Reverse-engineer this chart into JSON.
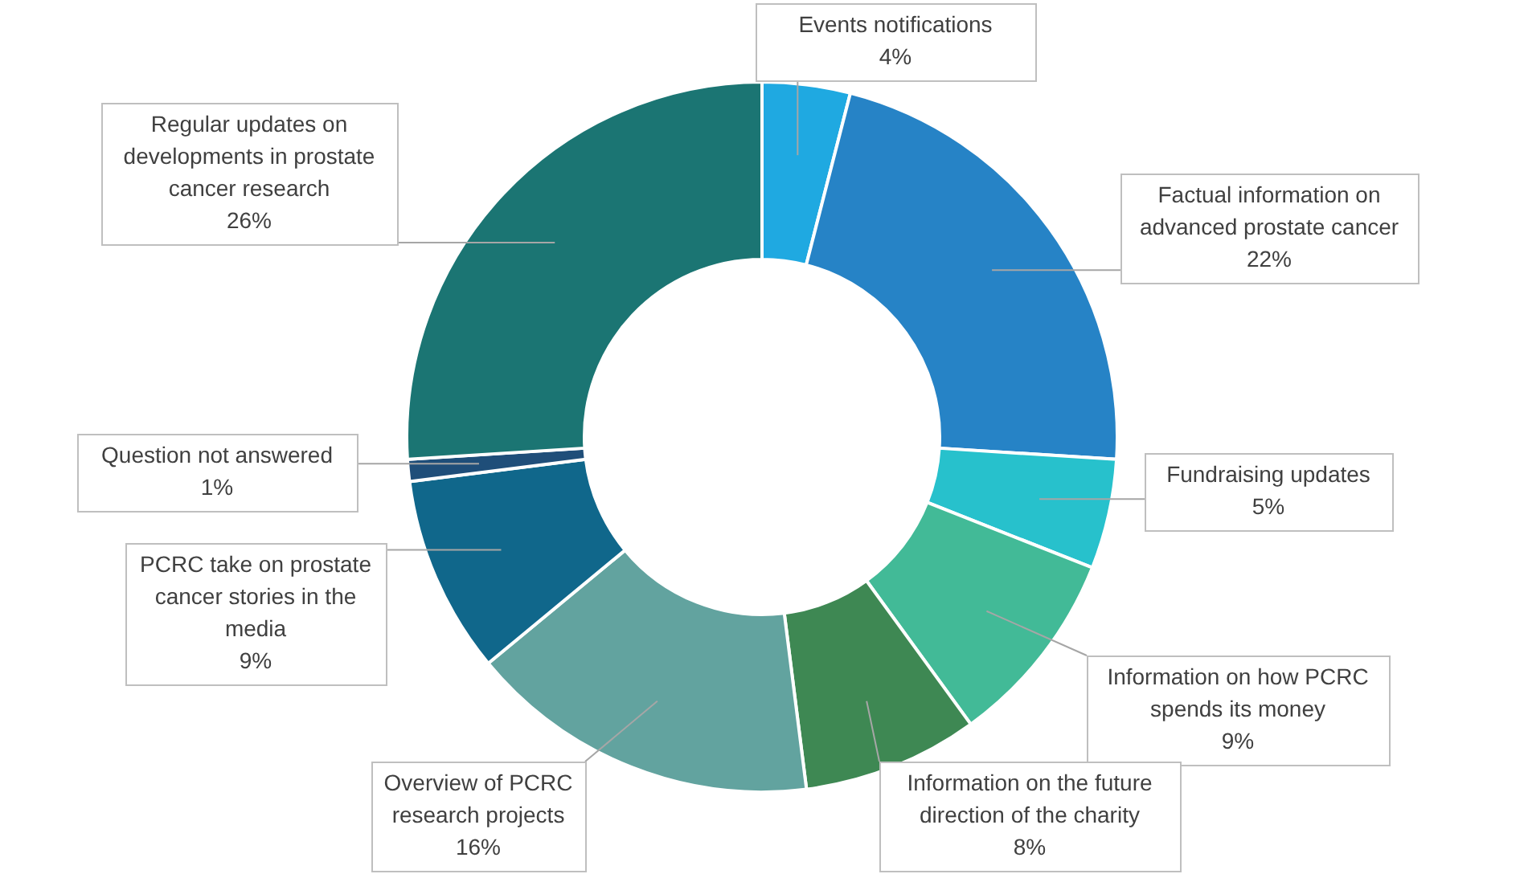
{
  "chart_data": {
    "type": "donut",
    "categories": [
      "Events notifications",
      "Factual information on advanced prostate cancer",
      "Fundraising updates",
      "Information on how PCRC spends its money",
      "Information on the future direction of the charity",
      "Overview of PCRC research projects",
      "PCRC take on prostate cancer stories in the media",
      "Question not answered",
      "Regular updates on developments in prostate cancer research"
    ],
    "values": [
      4,
      22,
      5,
      9,
      8,
      16,
      9,
      1,
      26
    ],
    "value_labels": [
      "4%",
      "22%",
      "5%",
      "9%",
      "8%",
      "16%",
      "9%",
      "1%",
      "26%"
    ],
    "colors": [
      "#1fa9e1",
      "#2683c6",
      "#27c1cc",
      "#42ba97",
      "#3e8853",
      "#62a39f",
      "#10678b",
      "#1f4e79",
      "#1b7573"
    ],
    "legend": false
  }
}
